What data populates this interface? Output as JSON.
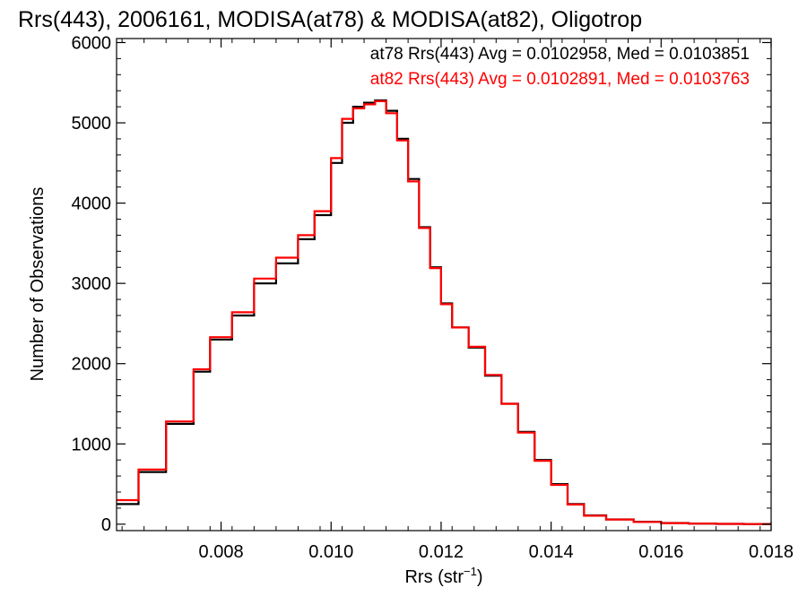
{
  "chart_data": {
    "type": "line",
    "title": "Rrs(443), 2006161, MODISA(at78) & MODISA(at82), Oligotrop",
    "xlabel": "Rrs (str",
    "xlabel_sup": "−1",
    "xlabel_close": ")",
    "ylabel": "Number of Observations",
    "xlim": [
      0.0061,
      0.018
    ],
    "ylim": [
      -80,
      6050
    ],
    "x_ticks": [
      0.008,
      0.01,
      0.012,
      0.014,
      0.016,
      0.018
    ],
    "x_tick_labels": [
      "0.008",
      "0.010",
      "0.012",
      "0.014",
      "0.016",
      "0.018"
    ],
    "y_ticks": [
      0,
      1000,
      2000,
      3000,
      4000,
      5000,
      6000
    ],
    "y_tick_labels": [
      "0",
      "1000",
      "2000",
      "3000",
      "4000",
      "5000",
      "6000"
    ],
    "grid": false,
    "legend_position": "top-right",
    "annotations": [
      "at78 Rrs(443) Avg = 0.0102958, Med = 0.0103851",
      "at82 Rrs(443) Avg = 0.0102891, Med = 0.0103763"
    ],
    "series": [
      {
        "color": "#000000",
        "x": [
          0.0061,
          0.0065,
          0.007,
          0.0075,
          0.0078,
          0.0082,
          0.0086,
          0.009,
          0.0094,
          0.0097,
          0.01,
          0.0102,
          0.0104,
          0.0106,
          0.0108,
          0.011,
          0.0112,
          0.0114,
          0.0116,
          0.0118,
          0.012,
          0.0122,
          0.0125,
          0.0128,
          0.0131,
          0.0134,
          0.0137,
          0.014,
          0.0143,
          0.0146,
          0.015,
          0.0155,
          0.016,
          0.0165,
          0.017,
          0.0175,
          0.018
        ],
        "y": [
          250,
          650,
          1250,
          1900,
          2300,
          2600,
          3000,
          3250,
          3550,
          3850,
          4500,
          5000,
          5200,
          5250,
          5280,
          5150,
          4800,
          4300,
          3700,
          3200,
          2750,
          2450,
          2200,
          1850,
          1500,
          1150,
          800,
          500,
          250,
          110,
          60,
          30,
          15,
          8,
          4,
          2,
          1
        ]
      },
      {
        "color": "#ff0000",
        "x": [
          0.0061,
          0.0065,
          0.007,
          0.0075,
          0.0078,
          0.0082,
          0.0086,
          0.009,
          0.0094,
          0.0097,
          0.01,
          0.0102,
          0.0104,
          0.0106,
          0.0108,
          0.011,
          0.0112,
          0.0114,
          0.0116,
          0.0118,
          0.012,
          0.0122,
          0.0125,
          0.0128,
          0.0131,
          0.0134,
          0.0137,
          0.014,
          0.0143,
          0.0146,
          0.015,
          0.0155,
          0.016,
          0.0165,
          0.017,
          0.0175,
          0.018
        ],
        "y": [
          300,
          680,
          1280,
          1930,
          2330,
          2640,
          3060,
          3320,
          3600,
          3900,
          4560,
          5050,
          5180,
          5230,
          5270,
          5120,
          4780,
          4270,
          3690,
          3190,
          2740,
          2450,
          2210,
          1860,
          1500,
          1140,
          790,
          490,
          245,
          105,
          58,
          28,
          14,
          7,
          4,
          2,
          1
        ]
      }
    ]
  }
}
